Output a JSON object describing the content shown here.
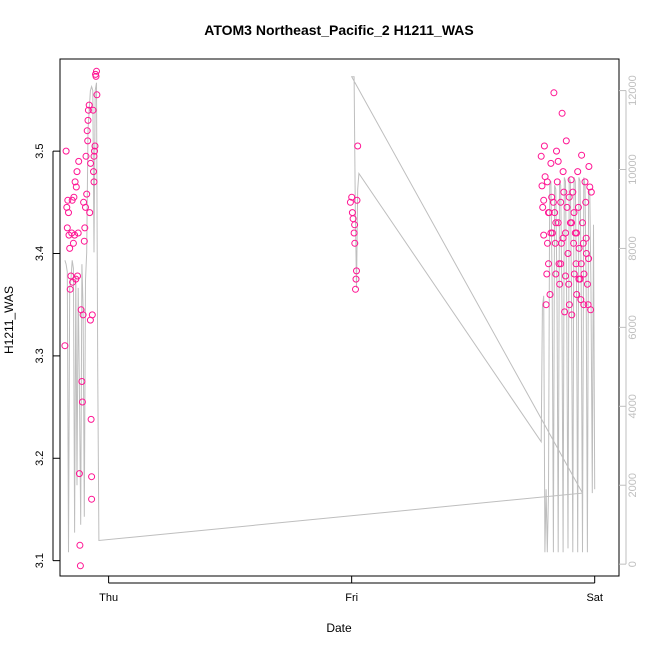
{
  "chart_data": {
    "type": "scatter",
    "title": "ATOM3 Northeast_Pacific_2 H1211_WAS",
    "xlabel": "Date",
    "ylabel": "H1211_WAS",
    "x_ticks": [
      "Thu",
      "Fri",
      "Sat"
    ],
    "y_ticks": [
      "3.1",
      "3.2",
      "3.3",
      "3.4",
      "3.5"
    ],
    "y2_ticks": [
      "0",
      "2000",
      "4000",
      "6000",
      "8000",
      "10000",
      "12000"
    ],
    "xlim_days": [
      -0.2,
      2.1
    ],
    "ylim": [
      3.085,
      3.59
    ],
    "y2lim": [
      -300,
      12800
    ],
    "colors": {
      "points": "#ff1493",
      "line": "#bebebe",
      "axis": "#000000",
      "right_axis": "#bfbfbf"
    },
    "series": [
      {
        "type": "scatter",
        "values": [
          [
            -0.18,
            3.31
          ],
          [
            -0.175,
            3.5
          ],
          [
            -0.172,
            3.445
          ],
          [
            -0.17,
            3.425
          ],
          [
            -0.168,
            3.452
          ],
          [
            -0.165,
            3.44
          ],
          [
            -0.163,
            3.418
          ],
          [
            -0.16,
            3.405
          ],
          [
            -0.158,
            3.365
          ],
          [
            -0.155,
            3.378
          ],
          [
            -0.152,
            3.42
          ],
          [
            -0.15,
            3.452
          ],
          [
            -0.148,
            3.372
          ],
          [
            -0.145,
            3.41
          ],
          [
            -0.143,
            3.455
          ],
          [
            -0.14,
            3.418
          ],
          [
            -0.138,
            3.47
          ],
          [
            -0.135,
            3.375
          ],
          [
            -0.133,
            3.465
          ],
          [
            -0.13,
            3.48
          ],
          [
            -0.128,
            3.378
          ],
          [
            -0.125,
            3.42
          ],
          [
            -0.123,
            3.49
          ],
          [
            -0.12,
            3.185
          ],
          [
            -0.118,
            3.115
          ],
          [
            -0.116,
            3.095
          ],
          [
            -0.113,
            3.345
          ],
          [
            -0.11,
            3.275
          ],
          [
            -0.108,
            3.255
          ],
          [
            -0.105,
            3.34
          ],
          [
            -0.103,
            3.45
          ],
          [
            -0.1,
            3.412
          ],
          [
            -0.098,
            3.425
          ],
          [
            -0.095,
            3.445
          ],
          [
            -0.093,
            3.495
          ],
          [
            -0.09,
            3.458
          ],
          [
            -0.088,
            3.52
          ],
          [
            -0.085,
            3.53
          ],
          [
            -0.083,
            3.54
          ],
          [
            -0.08,
            3.545
          ],
          [
            -0.078,
            3.44
          ],
          [
            -0.075,
            3.335
          ],
          [
            -0.072,
            3.238
          ],
          [
            -0.07,
            3.16
          ],
          [
            -0.067,
            3.34
          ],
          [
            -0.064,
            3.54
          ],
          [
            -0.062,
            3.48
          ],
          [
            -0.06,
            3.47
          ],
          [
            -0.058,
            3.5
          ],
          [
            -0.056,
            3.505
          ],
          [
            -0.054,
            3.575
          ],
          [
            -0.052,
            3.573
          ],
          [
            -0.05,
            3.578
          ],
          [
            -0.048,
            3.555
          ],
          [
            -0.07,
            3.182
          ],
          [
            -0.074,
            3.488
          ],
          [
            -0.06,
            3.495
          ],
          [
            -0.086,
            3.51
          ],
          [
            0.995,
            3.45
          ],
          [
            1.0,
            3.455
          ],
          [
            1.003,
            3.44
          ],
          [
            1.006,
            3.434
          ],
          [
            1.01,
            3.42
          ],
          [
            1.013,
            3.41
          ],
          [
            1.016,
            3.365
          ],
          [
            1.018,
            3.375
          ],
          [
            1.02,
            3.383
          ],
          [
            1.022,
            3.452
          ],
          [
            1.025,
            3.505
          ],
          [
            1.012,
            3.428
          ],
          [
            1.78,
            3.495
          ],
          [
            1.783,
            3.466
          ],
          [
            1.786,
            3.445
          ],
          [
            1.79,
            3.418
          ],
          [
            1.793,
            3.505
          ],
          [
            1.796,
            3.475
          ],
          [
            1.8,
            3.35
          ],
          [
            1.803,
            3.38
          ],
          [
            1.806,
            3.41
          ],
          [
            1.81,
            3.39
          ],
          [
            1.813,
            3.44
          ],
          [
            1.816,
            3.36
          ],
          [
            1.82,
            3.488
          ],
          [
            1.823,
            3.455
          ],
          [
            1.826,
            3.42
          ],
          [
            1.83,
            3.45
          ],
          [
            1.832,
            3.557
          ],
          [
            1.835,
            3.44
          ],
          [
            1.838,
            3.41
          ],
          [
            1.84,
            3.38
          ],
          [
            1.843,
            3.5
          ],
          [
            1.846,
            3.47
          ],
          [
            1.85,
            3.43
          ],
          [
            1.853,
            3.39
          ],
          [
            1.856,
            3.37
          ],
          [
            1.86,
            3.45
          ],
          [
            1.863,
            3.41
          ],
          [
            1.866,
            3.537
          ],
          [
            1.87,
            3.48
          ],
          [
            1.873,
            3.46
          ],
          [
            1.876,
            3.343
          ],
          [
            1.88,
            3.42
          ],
          [
            1.883,
            3.51
          ],
          [
            1.886,
            3.445
          ],
          [
            1.89,
            3.4
          ],
          [
            1.893,
            3.37
          ],
          [
            1.896,
            3.35
          ],
          [
            1.9,
            3.43
          ],
          [
            1.903,
            3.472
          ],
          [
            1.906,
            3.34
          ],
          [
            1.91,
            3.46
          ],
          [
            1.913,
            3.41
          ],
          [
            1.916,
            3.38
          ],
          [
            1.92,
            3.42
          ],
          [
            1.923,
            3.39
          ],
          [
            1.926,
            3.36
          ],
          [
            1.93,
            3.48
          ],
          [
            1.933,
            3.445
          ],
          [
            1.936,
            3.405
          ],
          [
            1.94,
            3.375
          ],
          [
            1.943,
            3.355
          ],
          [
            1.946,
            3.496
          ],
          [
            1.95,
            3.43
          ],
          [
            1.953,
            3.41
          ],
          [
            1.956,
            3.38
          ],
          [
            1.96,
            3.47
          ],
          [
            1.963,
            3.45
          ],
          [
            1.966,
            3.4
          ],
          [
            1.97,
            3.37
          ],
          [
            1.973,
            3.35
          ],
          [
            1.976,
            3.485
          ],
          [
            1.98,
            3.465
          ],
          [
            1.983,
            3.345
          ],
          [
            1.986,
            3.46
          ],
          [
            1.79,
            3.452
          ],
          [
            1.805,
            3.47
          ],
          [
            1.81,
            3.44
          ],
          [
            1.82,
            3.42
          ],
          [
            1.84,
            3.43
          ],
          [
            1.85,
            3.49
          ],
          [
            1.86,
            3.39
          ],
          [
            1.87,
            3.415
          ],
          [
            1.88,
            3.378
          ],
          [
            1.895,
            3.455
          ],
          [
            1.905,
            3.43
          ],
          [
            1.915,
            3.44
          ],
          [
            1.925,
            3.42
          ],
          [
            1.935,
            3.375
          ],
          [
            1.945,
            3.39
          ],
          [
            1.955,
            3.35
          ],
          [
            1.965,
            3.415
          ],
          [
            1.975,
            3.395
          ]
        ]
      },
      {
        "type": "line",
        "axis": "right",
        "values": [
          [
            -0.18,
            7700
          ],
          [
            -0.175,
            7600
          ],
          [
            -0.17,
            7400
          ],
          [
            -0.165,
            300
          ],
          [
            -0.16,
            7000
          ],
          [
            -0.155,
            7200
          ],
          [
            -0.15,
            7700
          ],
          [
            -0.145,
            7500
          ],
          [
            -0.14,
            800
          ],
          [
            -0.135,
            7300
          ],
          [
            -0.13,
            2000
          ],
          [
            -0.125,
            7000
          ],
          [
            -0.12,
            4500
          ],
          [
            -0.115,
            1000
          ],
          [
            -0.11,
            7600
          ],
          [
            -0.105,
            6500
          ],
          [
            -0.1,
            1200
          ],
          [
            -0.095,
            7200
          ],
          [
            -0.09,
            7900
          ],
          [
            -0.085,
            11000
          ],
          [
            -0.08,
            11500
          ],
          [
            -0.075,
            12000
          ],
          [
            -0.07,
            12100
          ],
          [
            -0.065,
            12000
          ],
          [
            -0.06,
            7900
          ],
          [
            -0.055,
            12000
          ],
          [
            -0.05,
            12200
          ],
          [
            -0.045,
            5000
          ],
          [
            -0.04,
            600
          ],
          [
            1.95,
            1800
          ],
          [
            1.0,
            12350
          ],
          [
            1.01,
            12350
          ],
          [
            1.015,
            9000
          ],
          [
            1.02,
            7000
          ],
          [
            1.025,
            9500
          ],
          [
            1.03,
            9900
          ],
          [
            1.78,
            3100
          ],
          [
            1.785,
            6500
          ],
          [
            1.79,
            6800
          ],
          [
            1.795,
            300
          ],
          [
            1.8,
            1900
          ],
          [
            1.805,
            300
          ],
          [
            1.81,
            1800
          ],
          [
            1.815,
            9600
          ],
          [
            1.82,
            9700
          ],
          [
            1.825,
            6900
          ],
          [
            1.83,
            300
          ],
          [
            1.835,
            9600
          ],
          [
            1.84,
            9500
          ],
          [
            1.845,
            6800
          ],
          [
            1.85,
            300
          ],
          [
            1.855,
            9700
          ],
          [
            1.86,
            9600
          ],
          [
            1.865,
            6700
          ],
          [
            1.87,
            300
          ],
          [
            1.875,
            9800
          ],
          [
            1.88,
            9700
          ],
          [
            1.885,
            6600
          ],
          [
            1.89,
            400
          ],
          [
            1.895,
            9800
          ],
          [
            1.9,
            9700
          ],
          [
            1.905,
            6500
          ],
          [
            1.91,
            300
          ],
          [
            1.915,
            9800
          ],
          [
            1.92,
            9700
          ],
          [
            1.925,
            7000
          ],
          [
            1.93,
            300
          ],
          [
            1.935,
            9800
          ],
          [
            1.94,
            9700
          ],
          [
            1.945,
            6700
          ],
          [
            1.95,
            300
          ],
          [
            1.955,
            9800
          ],
          [
            1.96,
            9600
          ],
          [
            1.965,
            6800
          ],
          [
            1.97,
            300
          ],
          [
            1.975,
            9500
          ],
          [
            1.98,
            9400
          ],
          [
            1.985,
            6900
          ],
          [
            1.99,
            1800
          ],
          [
            1.995,
            8600
          ],
          [
            2.0,
            1900
          ]
        ]
      }
    ],
    "grid": false,
    "legend": "none"
  }
}
